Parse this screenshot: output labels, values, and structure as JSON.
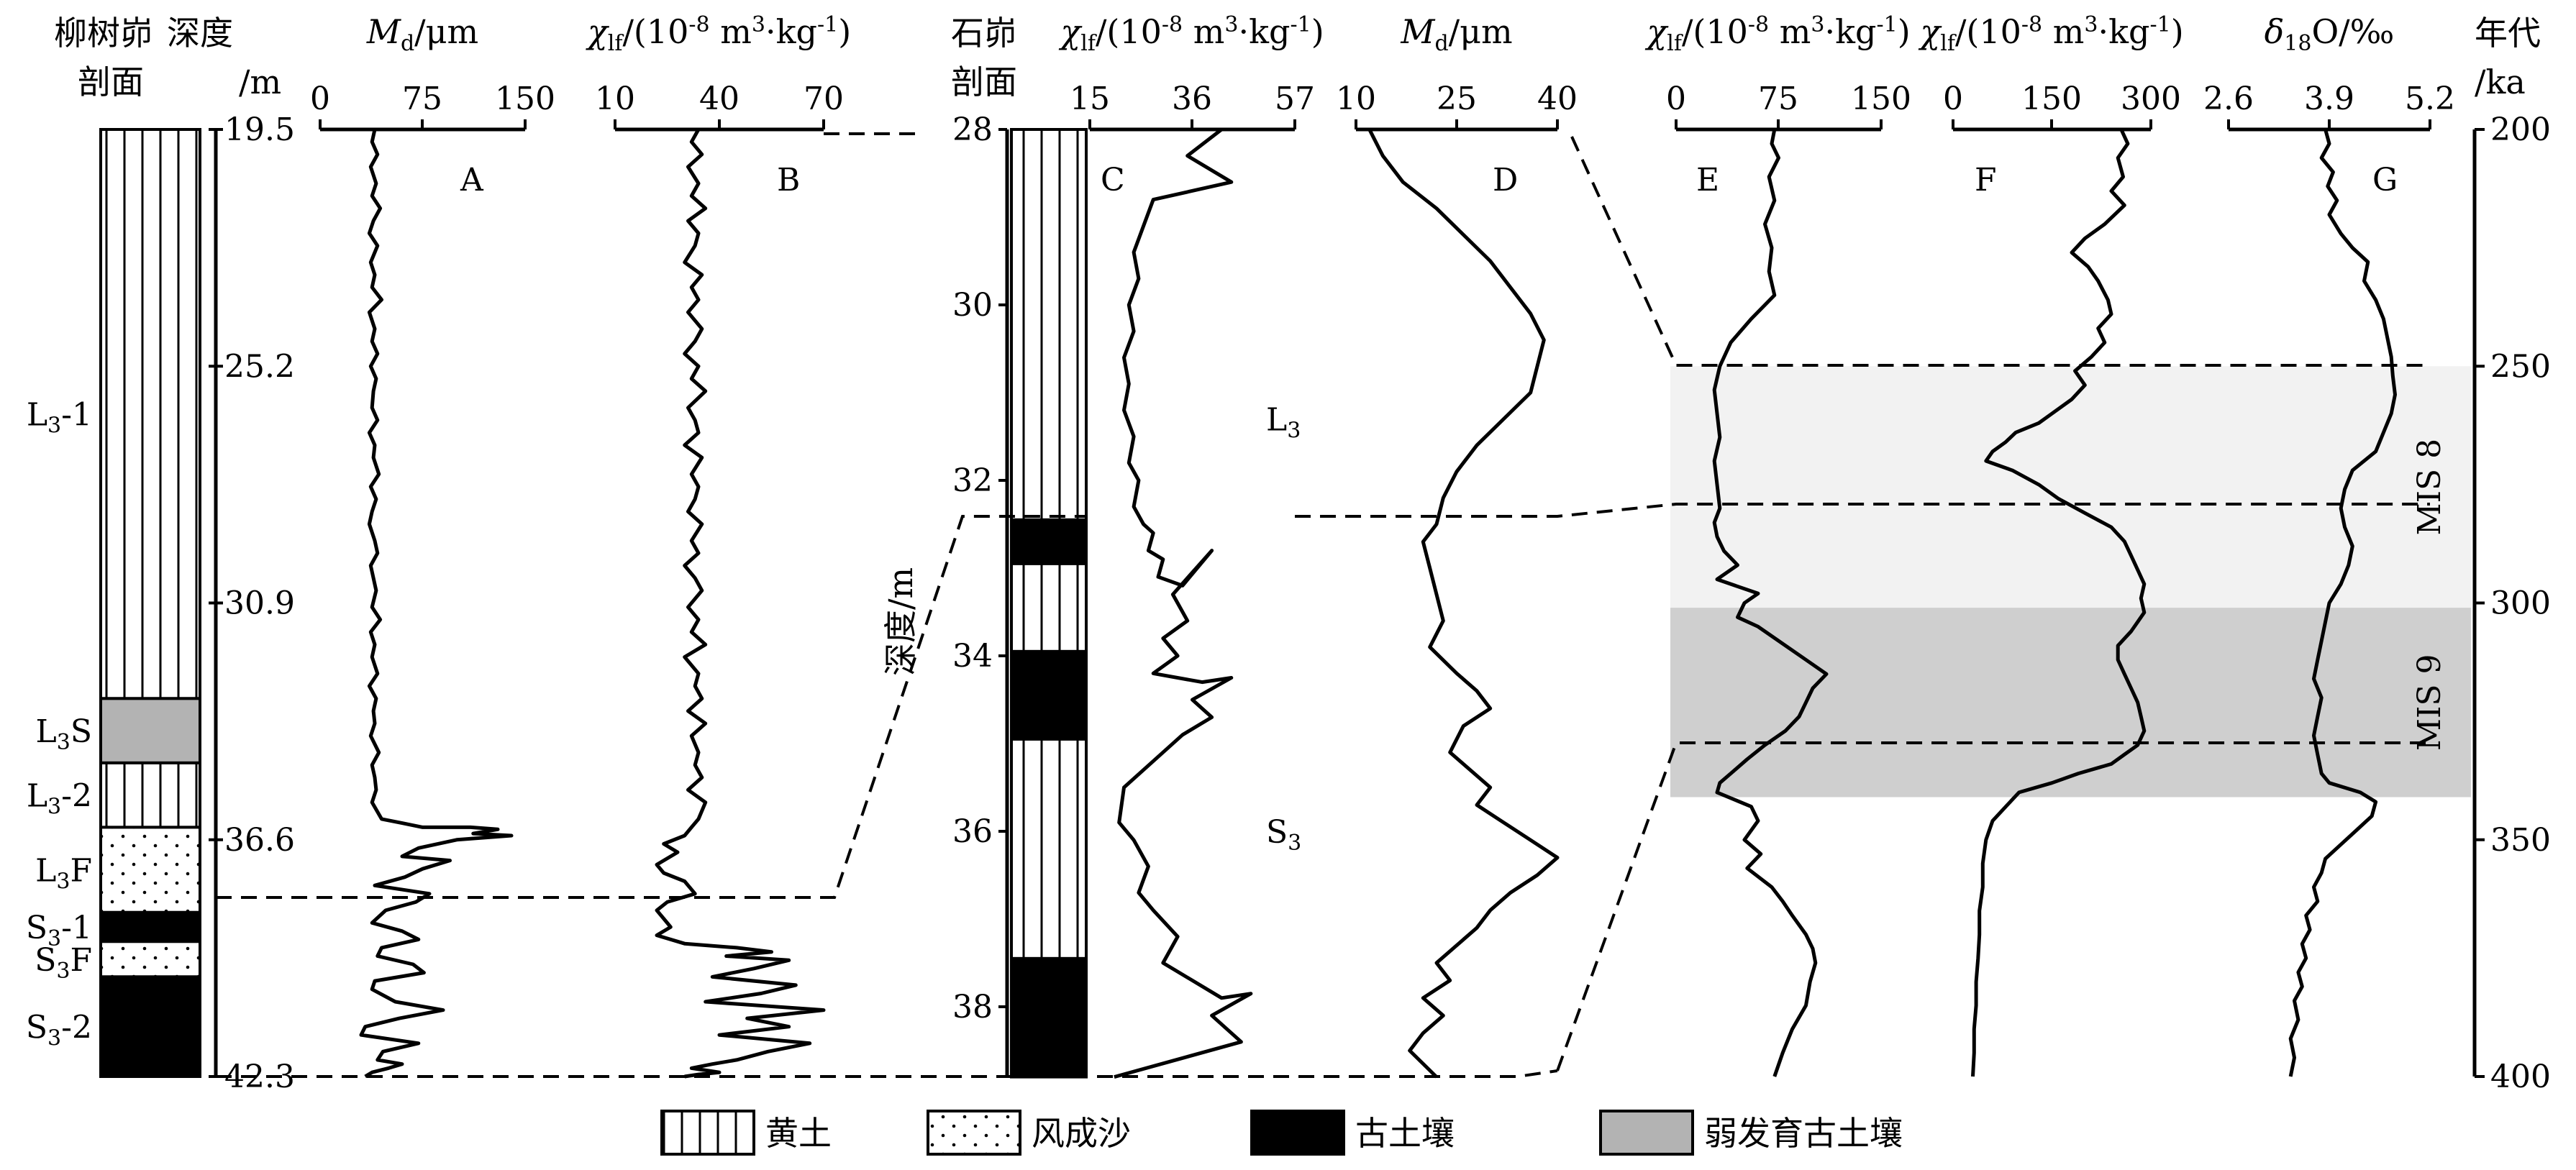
{
  "liushu": {
    "title_line1": "柳树峁",
    "title_line2": "剖面",
    "depth_title_line1": "深度",
    "depth_title_line2": "/m",
    "depth_ticks": [
      "19.5",
      "25.2",
      "30.9",
      "36.6",
      "42.3"
    ],
    "layers": [
      {
        "name": "L3-1",
        "base": "L",
        "sub": "3",
        "suffix": "-1",
        "type": "loess",
        "top": 19.5,
        "bottom": 33.2
      },
      {
        "name": "L3S",
        "base": "L",
        "sub": "3",
        "suffix": "S",
        "type": "weak",
        "top": 33.2,
        "bottom": 34.75
      },
      {
        "name": "L3-2",
        "base": "L",
        "sub": "3",
        "suffix": "-2",
        "type": "loess",
        "top": 34.75,
        "bottom": 36.3
      },
      {
        "name": "L3F",
        "base": "L",
        "sub": "3",
        "suffix": "F",
        "type": "sand",
        "top": 36.3,
        "bottom": 38.35
      },
      {
        "name": "S3-1",
        "base": "S",
        "sub": "3",
        "suffix": "-1",
        "type": "paleosol",
        "top": 38.35,
        "bottom": 39.05
      },
      {
        "name": "S3F",
        "base": "S",
        "sub": "3",
        "suffix": "F",
        "type": "sand",
        "top": 39.05,
        "bottom": 39.9
      },
      {
        "name": "S3-2",
        "base": "S",
        "sub": "3",
        "suffix": "-2",
        "type": "paleosol",
        "top": 39.9,
        "bottom": 42.3
      }
    ]
  },
  "shimao": {
    "title_line1": "石峁",
    "title_line2": "剖面",
    "depth_label": "深度/m",
    "depth_ticks": [
      "28",
      "30",
      "32",
      "34",
      "36",
      "38"
    ],
    "layer_labels": [
      {
        "base": "L",
        "sub": "3",
        "depth": 31.3
      },
      {
        "base": "S",
        "sub": "3",
        "depth": 36.0
      }
    ],
    "layers": [
      {
        "type": "loess",
        "top": 28.0,
        "bottom": 32.45
      },
      {
        "type": "paleosol",
        "top": 32.45,
        "bottom": 32.95
      },
      {
        "type": "loess",
        "top": 32.95,
        "bottom": 33.95
      },
      {
        "type": "paleosol",
        "top": 33.95,
        "bottom": 34.95
      },
      {
        "type": "loess",
        "top": 34.95,
        "bottom": 37.45
      },
      {
        "type": "paleosol",
        "top": 37.45,
        "bottom": 38.8
      }
    ]
  },
  "age_axis": {
    "title_line1": "年代",
    "title_line2": "/ka",
    "ticks": [
      "200",
      "250",
      "300",
      "350",
      "400"
    ]
  },
  "mis": [
    {
      "label": "MIS 8",
      "from": 250,
      "to": 301,
      "color": "#f2f2f2"
    },
    {
      "label": "MIS 9",
      "from": 301,
      "to": 341,
      "color": "#cfcfcf"
    }
  ],
  "legend": [
    {
      "type": "loess",
      "label": "黄土"
    },
    {
      "type": "sand",
      "label": "风成沙"
    },
    {
      "type": "paleosol",
      "label": "古土壤"
    },
    {
      "type": "weak",
      "label": "弱发育古土壤"
    }
  ],
  "chart_data": [
    {
      "type": "line",
      "panel": "A",
      "section": "柳树峁",
      "xlabel_sym": "M",
      "xlabel_sub": "d",
      "xlabel_unit": "/μm",
      "xlim": [
        0,
        150
      ],
      "xticks": [
        "0",
        "75",
        "150"
      ],
      "ylim": [
        19.5,
        42.3
      ],
      "x": [
        40,
        38,
        42,
        37,
        41,
        38,
        44,
        39,
        36,
        42,
        37,
        40,
        38,
        45,
        36,
        40,
        38,
        42,
        37,
        41,
        39,
        38,
        42,
        36,
        40,
        39,
        43,
        37,
        41,
        38,
        36,
        40,
        42,
        37,
        39,
        41,
        38,
        44,
        37,
        40,
        38,
        42,
        36,
        41,
        39,
        40,
        37,
        43,
        38,
        40,
        41,
        38,
        45,
        60,
        75,
        110,
        130,
        112,
        140,
        100,
        72,
        60,
        95,
        75,
        62,
        40,
        80,
        70,
        48,
        38,
        60,
        72,
        45,
        42,
        68,
        76,
        40,
        38,
        55,
        90,
        58,
        33,
        30,
        72,
        46,
        42,
        60,
        50,
        38,
        33
      ],
      "y": [
        19.5,
        19.8,
        20.1,
        20.4,
        20.8,
        21.1,
        21.4,
        21.7,
        22.0,
        22.3,
        22.7,
        23.0,
        23.3,
        23.6,
        23.9,
        24.3,
        24.6,
        24.9,
        25.2,
        25.5,
        25.8,
        26.2,
        26.5,
        26.8,
        27.1,
        27.4,
        27.8,
        28.1,
        28.4,
        28.7,
        29.0,
        29.4,
        29.7,
        30.0,
        30.3,
        30.6,
        31.0,
        31.3,
        31.6,
        31.9,
        32.2,
        32.6,
        32.9,
        33.2,
        33.5,
        33.8,
        34.1,
        34.5,
        34.8,
        35.1,
        35.4,
        35.7,
        36.1,
        36.2,
        36.3,
        36.3,
        36.35,
        36.45,
        36.5,
        36.6,
        36.8,
        37.0,
        37.1,
        37.3,
        37.5,
        37.7,
        37.9,
        38.1,
        38.3,
        38.6,
        38.8,
        39.0,
        39.2,
        39.4,
        39.6,
        39.8,
        40.0,
        40.2,
        40.5,
        40.7,
        40.9,
        41.1,
        41.3,
        41.5,
        41.7,
        41.9,
        42.0,
        42.1,
        42.2,
        42.3
      ]
    },
    {
      "type": "line",
      "panel": "B",
      "section": "柳树峁",
      "xlabel_sym": "χ",
      "xlabel_sub": "lf",
      "xlabel_unit": "/(10-8 m3·kg-1)",
      "xlim": [
        10,
        70
      ],
      "xticks": [
        "10",
        "40",
        "70"
      ],
      "ylim": [
        19.5,
        42.3
      ],
      "x": [
        34,
        32,
        35,
        31,
        34,
        32,
        36,
        31,
        34,
        33,
        30,
        35,
        32,
        34,
        31,
        35,
        33,
        30,
        34,
        32,
        36,
        31,
        33,
        34,
        30,
        35,
        32,
        34,
        33,
        31,
        35,
        32,
        34,
        30,
        33,
        35,
        31,
        34,
        32,
        36,
        30,
        34,
        33,
        35,
        31,
        36,
        32,
        34,
        33,
        35,
        31,
        36,
        34,
        32,
        30,
        24,
        28,
        22,
        24,
        30,
        33,
        25,
        22,
        24,
        26,
        22,
        30,
        45,
        55,
        42,
        60,
        50,
        38,
        62,
        52,
        36,
        70,
        48,
        60,
        40,
        66,
        54,
        45,
        38,
        32,
        40,
        34,
        30
      ],
      "y": [
        19.5,
        19.8,
        20.1,
        20.4,
        20.8,
        21.1,
        21.4,
        21.7,
        22.0,
        22.3,
        22.7,
        23.0,
        23.3,
        23.6,
        23.9,
        24.3,
        24.6,
        24.9,
        25.2,
        25.5,
        25.8,
        26.2,
        26.5,
        26.8,
        27.1,
        27.4,
        27.8,
        28.1,
        28.4,
        28.7,
        29.0,
        29.4,
        29.7,
        30.0,
        30.3,
        30.6,
        31.0,
        31.3,
        31.6,
        31.9,
        32.2,
        32.6,
        32.9,
        33.2,
        33.5,
        33.8,
        34.1,
        34.5,
        34.8,
        35.1,
        35.4,
        35.7,
        36.1,
        36.3,
        36.5,
        36.7,
        36.9,
        37.2,
        37.4,
        37.6,
        37.9,
        38.1,
        38.3,
        38.5,
        38.7,
        38.9,
        39.1,
        39.2,
        39.3,
        39.4,
        39.5,
        39.7,
        39.9,
        40.1,
        40.3,
        40.5,
        40.7,
        40.9,
        41.1,
        41.3,
        41.5,
        41.7,
        41.9,
        42.0,
        42.1,
        42.2,
        42.25,
        42.3
      ]
    },
    {
      "type": "line",
      "panel": "C",
      "section": "石峁",
      "xlabel_sym": "χ",
      "xlabel_sub": "lf",
      "xlabel_unit": "/(10-8 m3·kg-1)",
      "xlim": [
        15,
        57
      ],
      "xticks": [
        "15",
        "36",
        "57"
      ],
      "ylim": [
        28,
        38.8
      ],
      "x": [
        42,
        35,
        44,
        28,
        26,
        24,
        25,
        23,
        24,
        22,
        23,
        22,
        24,
        23,
        25,
        24,
        26,
        28,
        27,
        30,
        29,
        34,
        40,
        32,
        35,
        30,
        33,
        28,
        38,
        44,
        36,
        40,
        34,
        30,
        22,
        21,
        24,
        27,
        25,
        28,
        33,
        30,
        36,
        42,
        48,
        40,
        46,
        20
      ],
      "y": [
        28.0,
        28.3,
        28.6,
        28.8,
        29.1,
        29.4,
        29.7,
        30.0,
        30.3,
        30.6,
        30.9,
        31.2,
        31.5,
        31.8,
        32.0,
        32.3,
        32.5,
        32.6,
        32.8,
        32.9,
        33.1,
        33.2,
        32.8,
        33.3,
        33.6,
        33.8,
        34.0,
        34.2,
        34.3,
        34.25,
        34.5,
        34.7,
        34.9,
        35.1,
        35.5,
        35.9,
        36.1,
        36.4,
        36.7,
        36.9,
        37.2,
        37.5,
        37.7,
        37.9,
        37.85,
        38.1,
        38.4,
        38.8
      ]
    },
    {
      "type": "line",
      "panel": "D",
      "section": "石峁",
      "xlabel_sym": "M",
      "xlabel_sub": "d",
      "xlabel_unit": "/μm",
      "xlim": [
        10,
        40
      ],
      "xticks": [
        "10",
        "25",
        "40"
      ],
      "ylim": [
        28,
        38.8
      ],
      "x": [
        12,
        14,
        17,
        22,
        26,
        30,
        33,
        36,
        38,
        37,
        36,
        32,
        28,
        25,
        23,
        22,
        20,
        21,
        22,
        23,
        21,
        25,
        28,
        30,
        26,
        24,
        27,
        30,
        28,
        32,
        36,
        40,
        37,
        33,
        30,
        28,
        25,
        22,
        24,
        20,
        23,
        20,
        18,
        22
      ],
      "y": [
        28.0,
        28.3,
        28.6,
        28.9,
        29.2,
        29.5,
        29.8,
        30.1,
        30.4,
        30.7,
        31.0,
        31.3,
        31.6,
        31.9,
        32.2,
        32.5,
        32.7,
        33.0,
        33.3,
        33.6,
        33.9,
        34.2,
        34.4,
        34.6,
        34.8,
        35.1,
        35.3,
        35.5,
        35.7,
        35.9,
        36.1,
        36.3,
        36.5,
        36.7,
        36.9,
        37.1,
        37.3,
        37.5,
        37.7,
        37.9,
        38.1,
        38.3,
        38.5,
        38.8
      ]
    },
    {
      "type": "line",
      "panel": "E",
      "section": "年代",
      "xlabel_sym": "χ",
      "xlabel_sub": "lf",
      "xlabel_unit": "/(10-8 m3·kg-1)",
      "xlim": [
        0,
        150
      ],
      "xticks": [
        "0",
        "75",
        "150"
      ],
      "ylim": [
        200,
        400
      ],
      "x": [
        72,
        70,
        75,
        68,
        72,
        65,
        70,
        68,
        72,
        55,
        40,
        32,
        28,
        30,
        32,
        28,
        30,
        32,
        28,
        30,
        35,
        45,
        30,
        60,
        50,
        45,
        60,
        75,
        95,
        110,
        100,
        95,
        90,
        80,
        65,
        52,
        40,
        32,
        30,
        55,
        60,
        50,
        62,
        52,
        70,
        78,
        85,
        95,
        100,
        102,
        98,
        95,
        85,
        78,
        72
      ],
      "y": [
        200,
        203,
        206,
        210,
        215,
        220,
        225,
        230,
        235,
        240,
        245,
        250,
        255,
        260,
        265,
        270,
        275,
        280,
        283,
        286,
        289,
        292,
        295,
        298,
        300,
        303,
        305,
        308,
        312,
        315,
        318,
        321,
        324,
        327,
        330,
        333,
        336,
        338,
        340,
        343,
        346,
        350,
        353,
        356,
        360,
        363,
        366,
        370,
        373,
        376,
        380,
        385,
        390,
        395,
        400
      ]
    },
    {
      "type": "line",
      "panel": "F",
      "section": "年代",
      "xlabel_sym": "χ",
      "xlabel_sub": "lf",
      "xlabel_unit": "/(10-8 m3·kg-1)",
      "xlim": [
        0,
        300
      ],
      "xticks": [
        "0",
        "150",
        "300"
      ],
      "ylim": [
        200,
        400
      ],
      "x": [
        255,
        265,
        250,
        258,
        240,
        260,
        230,
        200,
        180,
        205,
        220,
        235,
        240,
        220,
        230,
        210,
        185,
        200,
        180,
        150,
        130,
        95,
        80,
        60,
        50,
        90,
        130,
        160,
        200,
        240,
        260,
        270,
        280,
        290,
        285,
        290,
        280,
        270,
        250,
        250,
        260,
        270,
        280,
        285,
        290,
        280,
        260,
        240,
        190,
        150,
        100,
        80,
        60,
        50,
        45,
        45,
        40,
        40,
        38,
        35,
        35,
        32,
        32,
        30
      ],
      "y": [
        200,
        203,
        206,
        210,
        213,
        216,
        220,
        223,
        226,
        229,
        232,
        236,
        239,
        242,
        245,
        248,
        251,
        254,
        257,
        260,
        262,
        264,
        266,
        268,
        270,
        272,
        275,
        278,
        281,
        284,
        287,
        290,
        293,
        296,
        299,
        302,
        304,
        306,
        309,
        312,
        315,
        318,
        321,
        324,
        327,
        330,
        332,
        334,
        336,
        338,
        340,
        343,
        346,
        350,
        355,
        360,
        365,
        370,
        375,
        380,
        385,
        390,
        395,
        400
      ]
    },
    {
      "type": "line",
      "panel": "G",
      "section": "年代",
      "xlabel_sym": "δ",
      "xlabel_sub": "18",
      "xlabel_unit": "O/‰",
      "xlim": [
        2.6,
        5.2
      ],
      "xticks": [
        "2.6",
        "3.9",
        "5.2"
      ],
      "ylim": [
        200,
        400
      ],
      "x": [
        3.85,
        3.9,
        3.8,
        3.95,
        3.88,
        4.0,
        3.9,
        4.05,
        4.2,
        4.4,
        4.35,
        4.5,
        4.6,
        4.65,
        4.7,
        4.72,
        4.75,
        4.7,
        4.6,
        4.5,
        4.2,
        4.1,
        4.05,
        4.1,
        4.2,
        4.15,
        4.05,
        3.9,
        3.85,
        3.8,
        3.75,
        3.7,
        3.8,
        3.75,
        3.7,
        3.75,
        3.8,
        3.9,
        4.3,
        4.5,
        4.45,
        4.25,
        4.05,
        3.85,
        3.8,
        3.7,
        3.75,
        3.6,
        3.65,
        3.55,
        3.6,
        3.5,
        3.55,
        3.45,
        3.5,
        3.4,
        3.45,
        3.4
      ],
      "y": [
        200,
        203,
        206,
        209,
        212,
        215,
        218,
        222,
        225,
        228,
        232,
        236,
        240,
        244,
        248,
        252,
        256,
        260,
        264,
        268,
        272,
        276,
        280,
        284,
        288,
        292,
        296,
        300,
        304,
        308,
        312,
        316,
        320,
        324,
        328,
        332,
        336,
        338,
        340,
        342,
        345,
        348,
        351,
        354,
        357,
        360,
        363,
        366,
        369,
        372,
        375,
        378,
        381,
        384,
        388,
        392,
        396,
        400
      ]
    }
  ]
}
